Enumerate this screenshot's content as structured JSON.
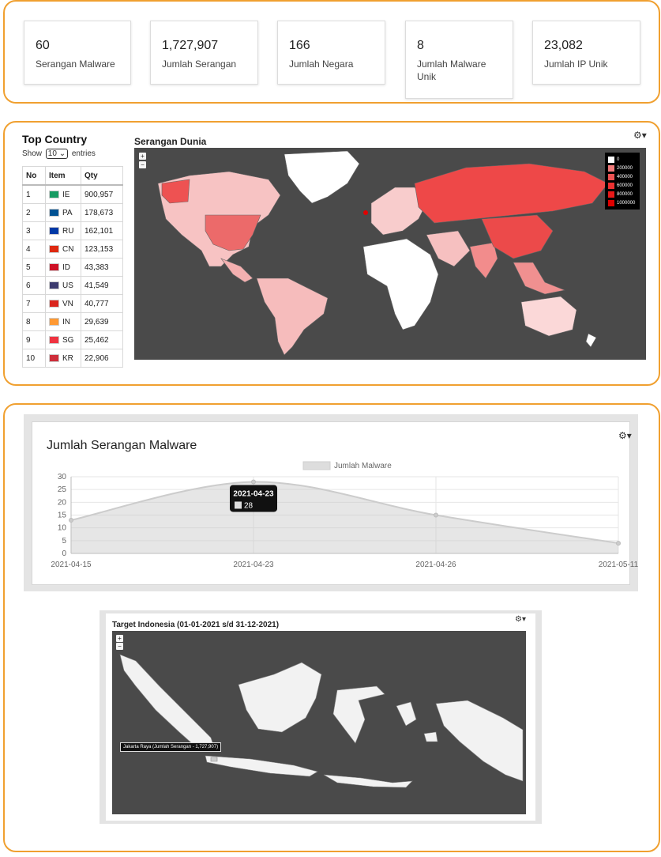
{
  "stats": [
    {
      "value": "60",
      "label": "Serangan Malware"
    },
    {
      "value": "1,727,907",
      "label": "Jumlah Serangan"
    },
    {
      "value": "166",
      "label": "Jumlah Negara"
    },
    {
      "value": "8",
      "label": "Jumlah Malware Unik"
    },
    {
      "value": "23,082",
      "label": "Jumlah IP Unik"
    }
  ],
  "top_country": {
    "title": "Top Country",
    "show_label": "Show",
    "entries_value": "10",
    "entries_label": "entries",
    "columns": [
      "No",
      "Item",
      "Qty"
    ],
    "rows": [
      {
        "no": "1",
        "item": "IE",
        "qty": "900,957",
        "flag": "#169b62"
      },
      {
        "no": "2",
        "item": "PA",
        "qty": "178,673",
        "flag": "#005293"
      },
      {
        "no": "3",
        "item": "RU",
        "qty": "162,101",
        "flag": "#0039a6"
      },
      {
        "no": "4",
        "item": "CN",
        "qty": "123,153",
        "flag": "#de2910"
      },
      {
        "no": "5",
        "item": "ID",
        "qty": "43,383",
        "flag": "#ce1126"
      },
      {
        "no": "6",
        "item": "US",
        "qty": "41,549",
        "flag": "#3c3b6e"
      },
      {
        "no": "7",
        "item": "VN",
        "qty": "40,777",
        "flag": "#da251d"
      },
      {
        "no": "8",
        "item": "IN",
        "qty": "29,639",
        "flag": "#ff9933"
      },
      {
        "no": "9",
        "item": "SG",
        "qty": "25,462",
        "flag": "#ef3340"
      },
      {
        "no": "10",
        "item": "KR",
        "qty": "22,906",
        "flag": "#cd2e3a"
      }
    ]
  },
  "world_map": {
    "title": "Serangan Dunia",
    "zoom_in": "+",
    "zoom_out": "−",
    "legend": [
      {
        "label": "0",
        "color": "#ffffff"
      },
      {
        "label": "200000",
        "color": "#f07a7a"
      },
      {
        "label": "400000",
        "color": "#ee5252"
      },
      {
        "label": "600000",
        "color": "#ec3030"
      },
      {
        "label": "800000",
        "color": "#e81818"
      },
      {
        "label": "1000000",
        "color": "#e00000"
      }
    ]
  },
  "malware_chart": {
    "title": "Jumlah Serangan Malware",
    "tooltip_date": "2021-04-23",
    "tooltip_value": "28"
  },
  "chart_data": {
    "type": "area",
    "title": "Jumlah Serangan Malware",
    "x": [
      "2021-04-15",
      "2021-04-23",
      "2021-04-26",
      "2021-05-11"
    ],
    "series": [
      {
        "name": "Jumlah Malware",
        "values": [
          13,
          28,
          15,
          4
        ]
      }
    ],
    "ylim": [
      0,
      30
    ],
    "yticks": [
      0,
      5,
      10,
      15,
      20,
      25,
      30
    ],
    "grid": true,
    "legend_position": "top-center"
  },
  "indonesia_map": {
    "title": "Target Indonesia (01-01-2021 s/d 31-12-2021)",
    "zoom_in": "+",
    "zoom_out": "−",
    "tooltip": "Jakarta Raya (Jumlah Serangan - 1,727,907)"
  },
  "icons": {
    "gear": "⚙▾"
  },
  "colors": {
    "accent_border": "#f0a030",
    "map_bg": "#4a4a4a",
    "highlight": "#e00000"
  }
}
